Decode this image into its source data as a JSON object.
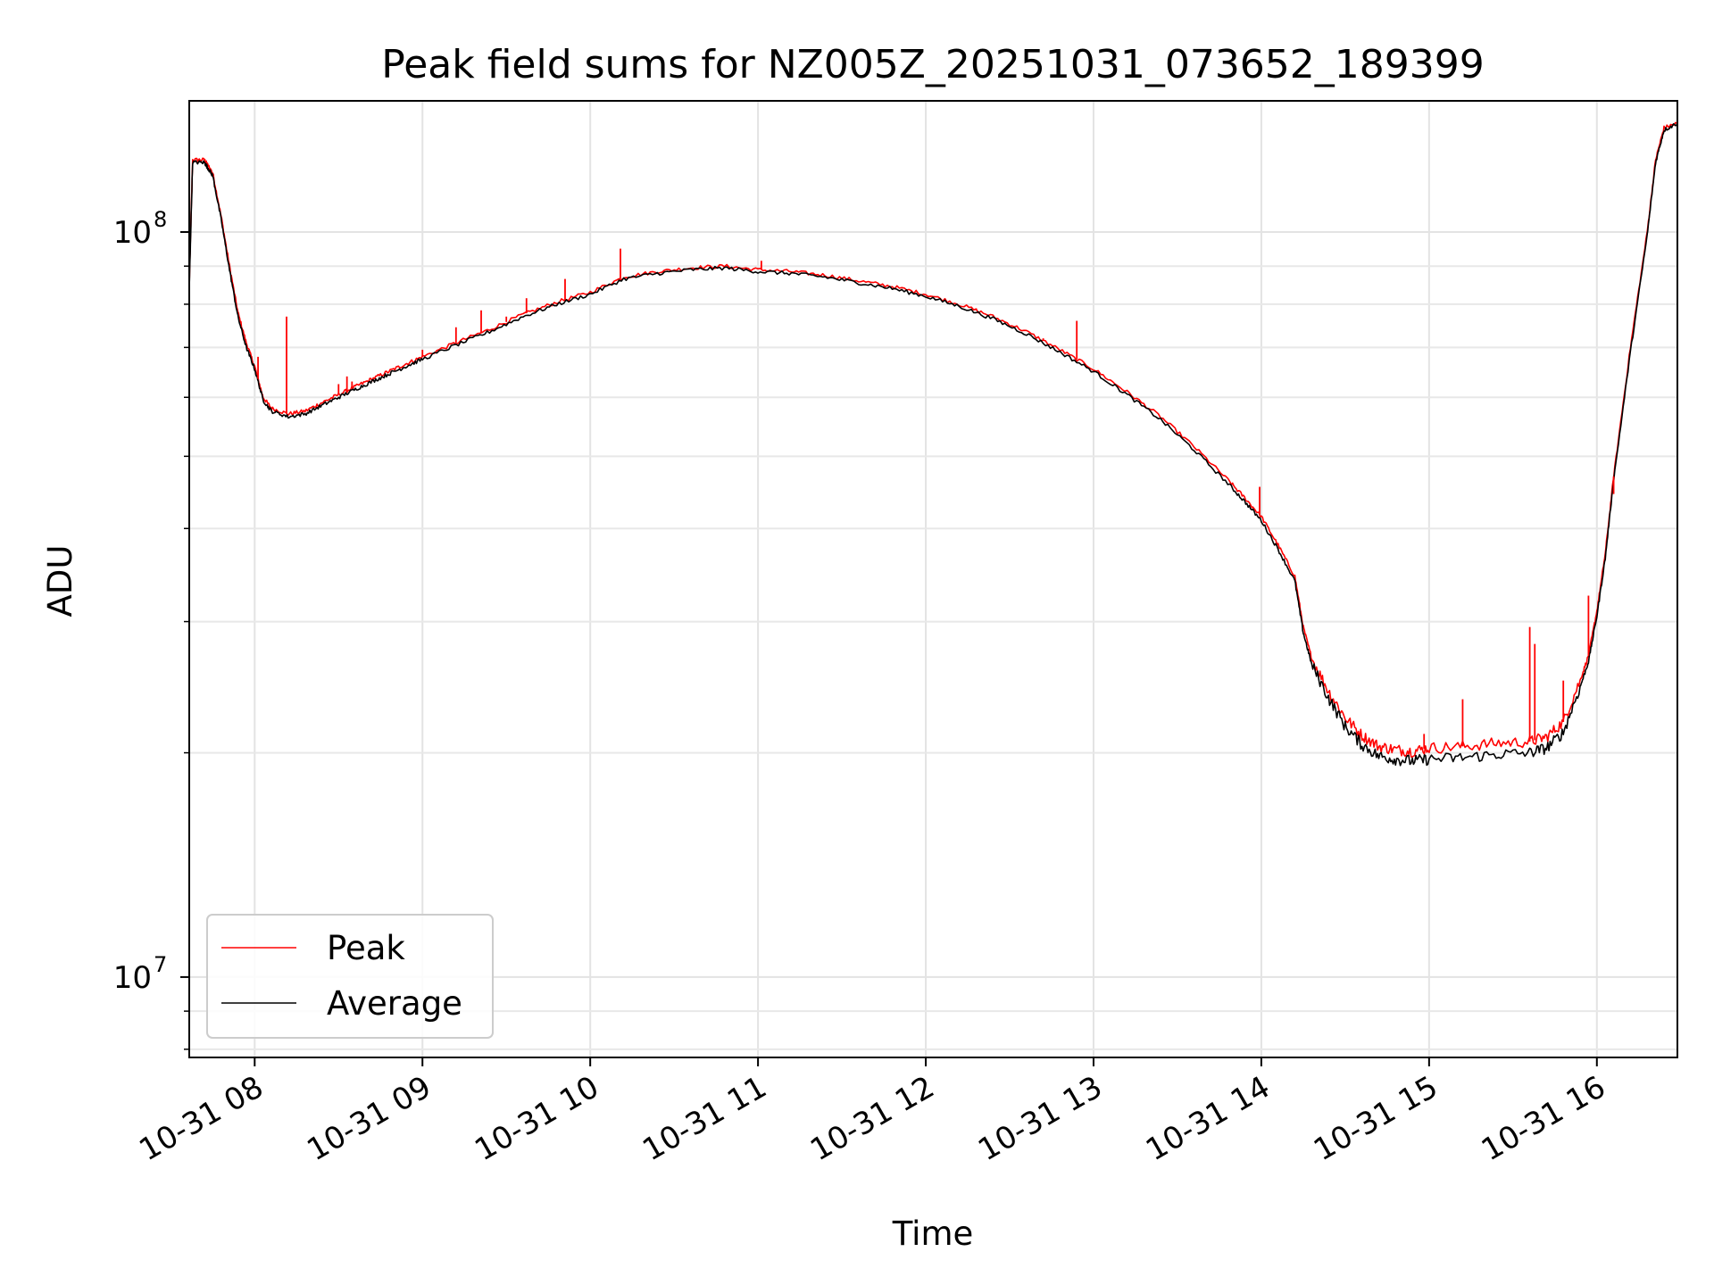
{
  "chart_data": {
    "type": "line",
    "title": "Peak field sums for NZ005Z_20251031_073652_189399",
    "xlabel": "Time",
    "ylabel": "ADU",
    "yscale": "log",
    "xlim": [
      7.61,
      16.48
    ],
    "ylim": [
      7800000,
      150000000
    ],
    "grid": true,
    "x_ticks": [
      {
        "value": 8,
        "label": "10-31 08"
      },
      {
        "value": 9,
        "label": "10-31 09"
      },
      {
        "value": 10,
        "label": "10-31 10"
      },
      {
        "value": 11,
        "label": "10-31 11"
      },
      {
        "value": 12,
        "label": "10-31 12"
      },
      {
        "value": 13,
        "label": "10-31 13"
      },
      {
        "value": 14,
        "label": "10-31 14"
      },
      {
        "value": 15,
        "label": "10-31 15"
      },
      {
        "value": 16,
        "label": "10-31 16"
      }
    ],
    "y_ticks": [
      {
        "value": 10000000,
        "base": "10",
        "exp": "7"
      },
      {
        "value": 100000000,
        "base": "10",
        "exp": "8"
      }
    ],
    "legend": {
      "position": "lower-left",
      "entries": [
        "Peak",
        "Average"
      ]
    },
    "x_unit": "hour of 2025-10-31",
    "series": [
      {
        "name": "Peak",
        "color": "#ff0000",
        "x": [
          7.61,
          7.63,
          7.7,
          7.72,
          7.75,
          7.8,
          7.85,
          7.9,
          7.95,
          8.0,
          8.05,
          8.1,
          8.2,
          8.3,
          8.4,
          8.5,
          8.6,
          8.7,
          8.8,
          8.9,
          9.0,
          9.2,
          9.4,
          9.6,
          9.8,
          10.0,
          10.2,
          10.4,
          10.6,
          10.8,
          11.0,
          11.2,
          11.4,
          11.6,
          11.8,
          12.0,
          12.2,
          12.4,
          12.6,
          12.8,
          13.0,
          13.2,
          13.4,
          13.6,
          13.8,
          13.9,
          14.0,
          14.1,
          14.2,
          14.25,
          14.3,
          14.4,
          14.5,
          14.6,
          14.7,
          14.8,
          14.9,
          15.0,
          15.2,
          15.4,
          15.6,
          15.7,
          15.8,
          15.9,
          15.95,
          16.0,
          16.05,
          16.1,
          16.2,
          16.3,
          16.35,
          16.4,
          16.48
        ],
        "y": [
          85000000,
          125000000,
          125000000,
          123000000,
          120000000,
          105000000,
          90000000,
          78000000,
          71000000,
          66000000,
          60000000,
          58000000,
          57000000,
          57500000,
          59000000,
          60500000,
          62000000,
          63500000,
          65000000,
          66500000,
          68000000,
          71000000,
          74000000,
          77500000,
          80500000,
          83000000,
          87000000,
          88500000,
          89500000,
          90000000,
          89000000,
          88500000,
          87500000,
          86000000,
          84500000,
          82500000,
          80000000,
          77000000,
          73500000,
          69500000,
          65500000,
          61000000,
          56500000,
          51500000,
          46500000,
          44000000,
          41500000,
          38000000,
          34500000,
          29500000,
          26800000,
          24200000,
          22300000,
          21100000,
          20400000,
          20200000,
          20100000,
          20300000,
          20400000,
          20600000,
          20700000,
          21000000,
          22000000,
          25000000,
          27000000,
          31000000,
          37000000,
          47000000,
          70000000,
          100000000,
          125000000,
          138000000,
          140000000
        ]
      },
      {
        "name": "Average",
        "color": "#000000",
        "x": [
          7.61,
          7.63,
          7.7,
          7.72,
          7.75,
          7.8,
          7.85,
          7.9,
          7.95,
          8.0,
          8.05,
          8.1,
          8.2,
          8.3,
          8.4,
          8.5,
          8.6,
          8.7,
          8.8,
          8.9,
          9.0,
          9.2,
          9.4,
          9.6,
          9.8,
          10.0,
          10.2,
          10.4,
          10.6,
          10.8,
          11.0,
          11.2,
          11.4,
          11.6,
          11.8,
          12.0,
          12.2,
          12.4,
          12.6,
          12.8,
          13.0,
          13.2,
          13.4,
          13.6,
          13.8,
          13.9,
          14.0,
          14.1,
          14.2,
          14.25,
          14.3,
          14.4,
          14.5,
          14.6,
          14.7,
          14.8,
          14.9,
          15.0,
          15.2,
          15.4,
          15.6,
          15.7,
          15.8,
          15.9,
          15.95,
          16.0,
          16.05,
          16.1,
          16.2,
          16.3,
          16.35,
          16.4,
          16.48
        ],
        "y": [
          84000000,
          124000000,
          124000000,
          122000000,
          119000000,
          104000000,
          89000000,
          77000000,
          70000000,
          65500000,
          59500000,
          57500000,
          56500000,
          57000000,
          58500000,
          60000000,
          61500000,
          63000000,
          64500000,
          66000000,
          67500000,
          70500000,
          73500000,
          77000000,
          80000000,
          82500000,
          86500000,
          88000000,
          89000000,
          89500000,
          88500000,
          88000000,
          87000000,
          85500000,
          84000000,
          82000000,
          79500000,
          76500000,
          73000000,
          69000000,
          65000000,
          60500000,
          56000000,
          51000000,
          46000000,
          43500000,
          41000000,
          37500000,
          34000000,
          29000000,
          26300000,
          23700000,
          21700000,
          20500000,
          19800000,
          19600000,
          19500000,
          19600000,
          19700000,
          19900000,
          20000000,
          20300000,
          21300000,
          24500000,
          26500000,
          30500000,
          36500000,
          46500000,
          69000000,
          99000000,
          124000000,
          137000000,
          140000000
        ]
      }
    ],
    "spikes": [
      {
        "x": 7.95,
        "y": 71000000
      },
      {
        "x": 8.02,
        "y": 68000000
      },
      {
        "x": 8.19,
        "y": 77000000
      },
      {
        "x": 8.5,
        "y": 62500000
      },
      {
        "x": 8.55,
        "y": 64000000
      },
      {
        "x": 8.58,
        "y": 63000000
      },
      {
        "x": 9.0,
        "y": 69500000
      },
      {
        "x": 9.2,
        "y": 74500000
      },
      {
        "x": 9.35,
        "y": 78500000
      },
      {
        "x": 9.5,
        "y": 77000000
      },
      {
        "x": 9.62,
        "y": 81500000
      },
      {
        "x": 9.85,
        "y": 86500000
      },
      {
        "x": 10.18,
        "y": 95000000
      },
      {
        "x": 11.02,
        "y": 91500000
      },
      {
        "x": 12.3,
        "y": 79000000
      },
      {
        "x": 12.7,
        "y": 72000000
      },
      {
        "x": 12.9,
        "y": 76000000
      },
      {
        "x": 13.99,
        "y": 45500000
      },
      {
        "x": 14.97,
        "y": 21200000
      },
      {
        "x": 15.2,
        "y": 23600000
      },
      {
        "x": 15.6,
        "y": 29500000
      },
      {
        "x": 15.63,
        "y": 28000000
      },
      {
        "x": 15.8,
        "y": 25000000
      },
      {
        "x": 15.95,
        "y": 32500000
      },
      {
        "x": 16.1,
        "y": 44500000
      }
    ]
  }
}
